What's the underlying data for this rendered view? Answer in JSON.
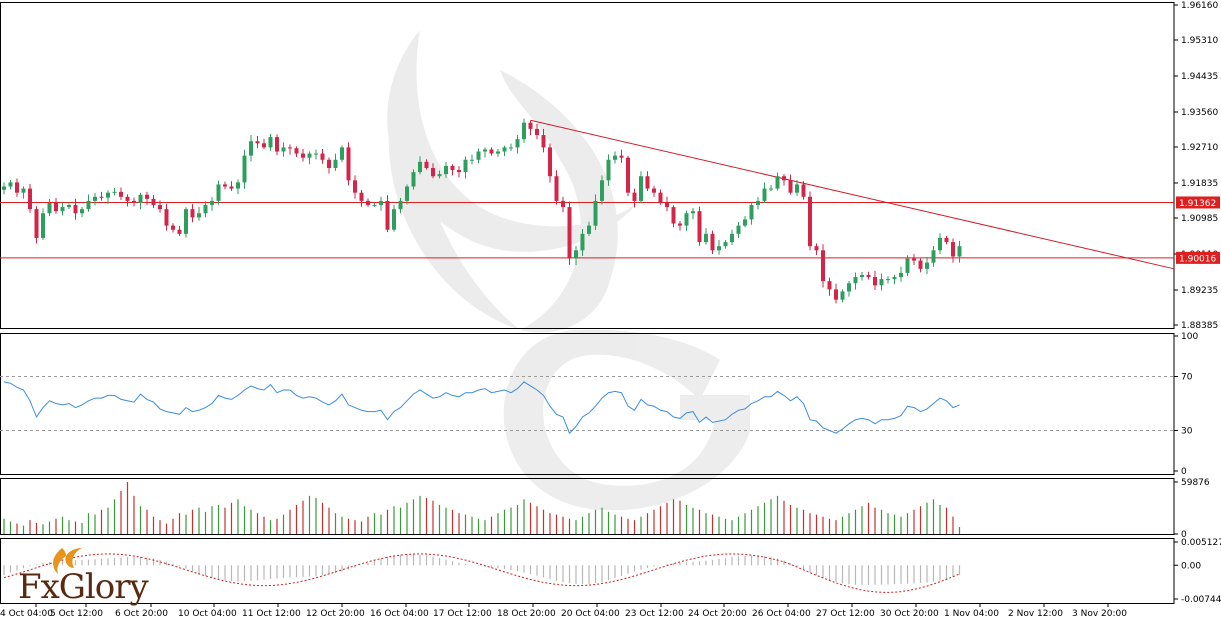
{
  "brand": {
    "logo_text": "FxGlory"
  },
  "colors": {
    "bull": "#2e9e5e",
    "bear": "#d3244a",
    "level_line": "#e01e1e",
    "trendline": "#d01e2a",
    "rsi_line": "#3a8ee0",
    "macd_signal": "#d01e1e",
    "macd_hist": "#b8b8b8",
    "vol_up": "#3a9a3a",
    "vol_down": "#c83030"
  },
  "chart_data": [
    {
      "type": "candlestick",
      "panel": "price",
      "ylim": [
        1.88385,
        1.9616
      ],
      "y_ticks": [
        "1.96160",
        "1.95310",
        "1.94435",
        "1.93560",
        "1.92710",
        "1.91835",
        "1.90985",
        "1.90110",
        "1.89235",
        "1.88385"
      ],
      "x_tick_labels": [
        "4 Oct 04:00",
        "5 Oct 12:00",
        "6 Oct 20:00",
        "10 Oct 04:00",
        "11 Oct 12:00",
        "12 Oct 20:00",
        "16 Oct 04:00",
        "17 Oct 12:00",
        "18 Oct 20:00",
        "20 Oct 04:00",
        "23 Oct 12:00",
        "24 Oct 20:00",
        "26 Oct 04:00",
        "27 Oct 12:00",
        "30 Oct 20:00",
        "1 Nov 04:00",
        "2 Nov 12:00",
        "3 Nov 20:00"
      ],
      "levels": [
        {
          "label": "1.91362",
          "value": 1.91362
        },
        {
          "label": "1.90016",
          "value": 1.90016
        }
      ],
      "trendline": {
        "from": {
          "index": 81,
          "value": 1.9336
        },
        "to": {
          "index": 146,
          "value": 1.9099
        }
      },
      "close": [
        1.9175,
        1.9185,
        1.916,
        1.917,
        1.912,
        1.905,
        1.911,
        1.9135,
        1.9115,
        1.9125,
        1.913,
        1.911,
        1.912,
        1.914,
        1.915,
        1.9148,
        1.916,
        1.9162,
        1.915,
        1.914,
        1.9135,
        1.9155,
        1.9145,
        1.913,
        1.912,
        1.908,
        1.907,
        1.906,
        1.912,
        1.91,
        1.911,
        1.913,
        1.914,
        1.918,
        1.9175,
        1.917,
        1.9185,
        1.925,
        1.9285,
        1.928,
        1.927,
        1.9295,
        1.926,
        1.927,
        1.9268,
        1.9255,
        1.9245,
        1.9255,
        1.9255,
        1.924,
        1.922,
        1.924,
        1.927,
        1.919,
        1.916,
        1.914,
        1.913,
        1.913,
        1.914,
        1.907,
        1.912,
        1.914,
        1.9175,
        1.921,
        1.9235,
        1.922,
        1.92,
        1.9205,
        1.9225,
        1.9215,
        1.921,
        1.924,
        1.924,
        1.926,
        1.9265,
        1.9255,
        1.926,
        1.927,
        1.927,
        1.929,
        1.933,
        1.9315,
        1.93,
        1.927,
        1.92,
        1.914,
        1.9125,
        1.9,
        1.902,
        1.906,
        1.908,
        1.914,
        1.919,
        1.924,
        1.925,
        1.9245,
        1.916,
        1.914,
        1.92,
        1.917,
        1.916,
        1.9135,
        1.9125,
        1.9085,
        1.908,
        1.911,
        1.9115,
        1.904,
        1.906,
        1.902,
        1.903,
        1.904,
        1.906,
        1.908,
        1.9095,
        1.913,
        1.914,
        1.917,
        1.917,
        1.92,
        1.919,
        1.916,
        1.918,
        1.915,
        1.903,
        1.902,
        1.8945,
        1.8925,
        1.89,
        1.892,
        1.894,
        1.8955,
        1.896,
        1.8955,
        1.8935,
        1.895,
        1.895,
        1.8955,
        1.8965,
        1.9,
        1.8995,
        1.8975,
        1.899,
        1.902,
        1.905,
        1.904,
        1.9005,
        1.903
      ]
    },
    {
      "type": "line",
      "panel": "rsi",
      "ylim": [
        0,
        100
      ],
      "y_ticks": [
        "100",
        "70",
        "30",
        "0"
      ],
      "reference_lines": [
        70,
        30
      ],
      "values": [
        66,
        65,
        62,
        60,
        52,
        40,
        47,
        52,
        50,
        49,
        50,
        47,
        49,
        52,
        54,
        54,
        56,
        56,
        53,
        52,
        51,
        57,
        53,
        51,
        46,
        44,
        43,
        42,
        47,
        44,
        45,
        47,
        50,
        56,
        54,
        53,
        56,
        60,
        63,
        61,
        60,
        64,
        58,
        60,
        60,
        56,
        54,
        55,
        54,
        51,
        49,
        52,
        57,
        49,
        47,
        45,
        44,
        44,
        45,
        38,
        44,
        47,
        52,
        57,
        60,
        57,
        54,
        55,
        58,
        56,
        55,
        58,
        58,
        60,
        61,
        58,
        59,
        60,
        58,
        61,
        66,
        63,
        60,
        56,
        48,
        42,
        40,
        28,
        33,
        40,
        43,
        48,
        54,
        58,
        59,
        58,
        48,
        45,
        53,
        49,
        48,
        45,
        44,
        40,
        39,
        43,
        44,
        36,
        40,
        36,
        37,
        38,
        42,
        45,
        46,
        50,
        52,
        55,
        55,
        59,
        56,
        52,
        55,
        50,
        38,
        37,
        32,
        30,
        28,
        31,
        35,
        38,
        39,
        38,
        35,
        38,
        38,
        39,
        41,
        48,
        47,
        44,
        46,
        50,
        54,
        52,
        47,
        49
      ]
    },
    {
      "type": "bar",
      "panel": "volume",
      "ylim": [
        0,
        59876
      ],
      "y_ticks": [
        "59876",
        "0"
      ],
      "values": [
        22,
        18,
        15,
        12,
        20,
        16,
        14,
        18,
        22,
        25,
        20,
        18,
        16,
        30,
        28,
        35,
        38,
        50,
        62,
        75,
        55,
        40,
        35,
        25,
        20,
        15,
        22,
        30,
        28,
        35,
        38,
        32,
        40,
        42,
        38,
        45,
        50,
        40,
        35,
        30,
        25,
        20,
        22,
        28,
        35,
        42,
        48,
        55,
        52,
        45,
        38,
        30,
        25,
        22,
        20,
        18,
        25,
        30,
        28,
        35,
        40,
        38,
        45,
        50,
        55,
        52,
        48,
        42,
        38,
        35,
        30,
        28,
        25,
        22,
        20,
        25,
        30,
        35,
        38,
        42,
        50,
        45,
        40,
        35,
        30,
        28,
        25,
        22,
        20,
        25,
        30,
        35,
        38,
        32,
        28,
        25,
        22,
        20,
        25,
        30,
        35,
        40,
        45,
        50,
        48,
        42,
        38,
        35,
        30,
        28,
        25,
        22,
        20,
        25,
        30,
        35,
        40,
        45,
        50,
        55,
        48,
        42,
        38,
        35,
        30,
        28,
        25,
        22,
        20,
        25,
        30,
        35,
        40,
        45,
        38,
        35,
        30,
        28,
        25,
        30,
        35,
        40,
        45,
        50,
        42,
        38,
        25,
        10
      ]
    },
    {
      "type": "line+histogram",
      "panel": "macd",
      "ylim": [
        -0.007441,
        0.005127
      ],
      "y_ticks": [
        "0.005127",
        "0.00",
        "-0.007441"
      ]
    }
  ]
}
